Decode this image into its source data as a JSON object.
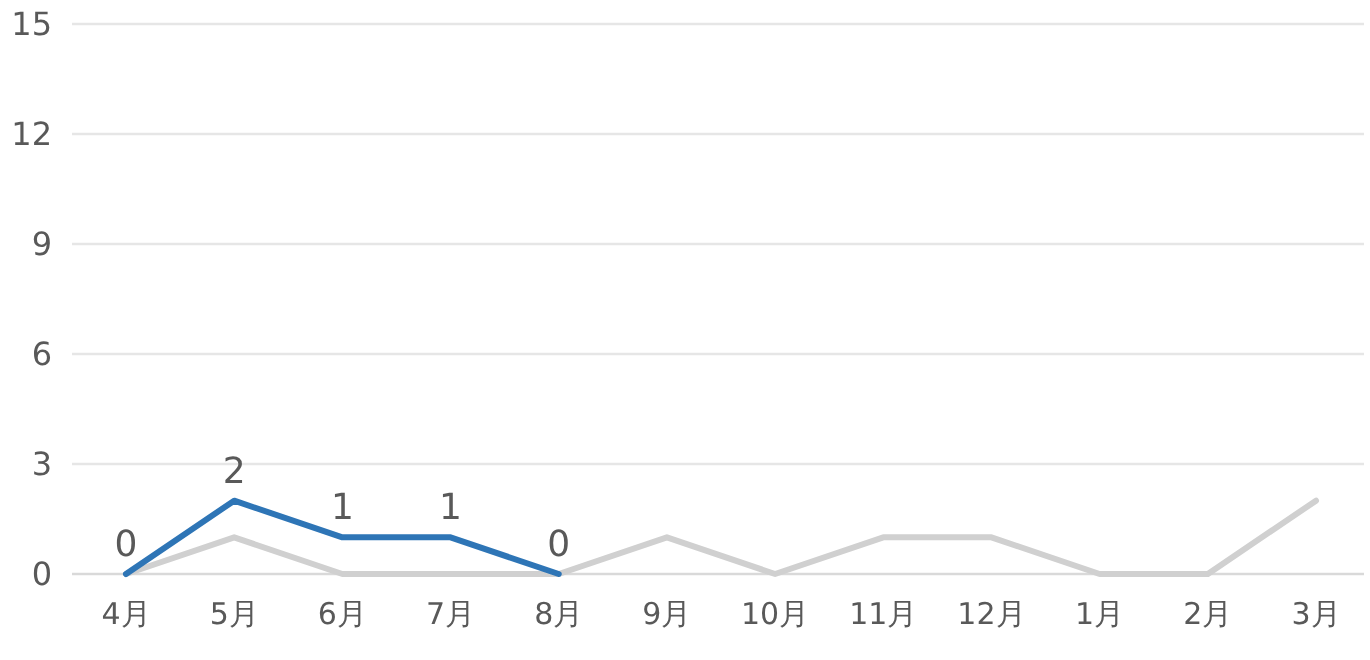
{
  "chart_data": {
    "type": "line",
    "categories": [
      "4月",
      "5月",
      "6月",
      "7月",
      "8月",
      "9月",
      "10月",
      "11月",
      "12月",
      "1月",
      "2月",
      "3月"
    ],
    "series": [
      {
        "color": "#d0d0d0",
        "values": [
          0,
          1,
          0,
          0,
          0,
          1,
          0,
          1,
          1,
          0,
          0,
          2
        ]
      },
      {
        "color": "#2e75b6",
        "values": [
          0,
          2,
          1,
          1,
          0,
          null,
          null,
          null,
          null,
          null,
          null,
          null
        ],
        "value_labels": [
          "0",
          "2",
          "1",
          "1",
          "0",
          null,
          null,
          null,
          null,
          null,
          null,
          null
        ]
      }
    ],
    "ylim": [
      0,
      15
    ],
    "yticks": [
      0,
      3,
      6,
      9,
      12,
      15
    ],
    "grid": "y",
    "marker": "none",
    "line_style": "solid"
  }
}
